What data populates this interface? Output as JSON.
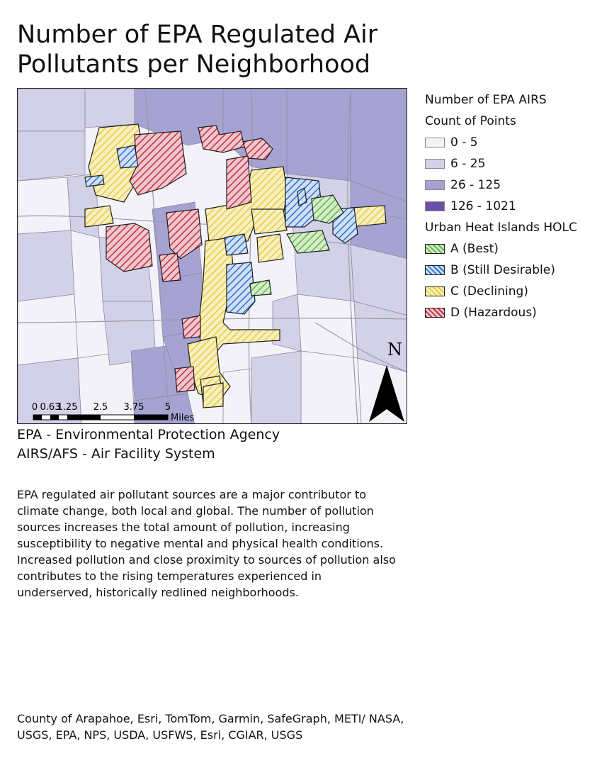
{
  "title": "Number of EPA Regulated Air Pollutants per Neighborhood",
  "legend": {
    "header1": "Number of EPA AIRS",
    "header2": "Count of Points",
    "classes": [
      {
        "label": "0 - 5",
        "color": "#f3f2f8"
      },
      {
        "label": "6 - 25",
        "color": "#d3d1e8"
      },
      {
        "label": "26 - 125",
        "color": "#a6a2d1"
      },
      {
        "label": "126 - 1021",
        "color": "#6a4fa8"
      }
    ],
    "holc_header": "Urban Heat Islands HOLC",
    "holc": [
      {
        "label": "A (Best)",
        "color": "#63b44a",
        "fill": "#d5ecc9"
      },
      {
        "label": "B (Still Desirable)",
        "color": "#2f6fd0",
        "fill": "#cfe0f6"
      },
      {
        "label": "C (Declining)",
        "color": "#e6cc3b",
        "fill": "#f7efbf"
      },
      {
        "label": "D (Hazardous)",
        "color": "#c12f43",
        "fill": "#f0c6cd"
      }
    ]
  },
  "map": {
    "north": "N",
    "scale_ticks": [
      "0",
      "0.63",
      "1.25",
      "2.5",
      "3.75",
      "5"
    ],
    "scale_unit": "Miles"
  },
  "sources": {
    "line1": "EPA - Environmental Protection Agency",
    "line2": "AIRS/AFS - Air Facility System"
  },
  "description": "EPA regulated air pollutant sources are a major contributor to climate change, both local and global. The number of pollution sources increases the total amount of pollution, increasing susceptibility to negative mental and physical health conditions. Increased pollution and close proximity to sources of pollution also contributes to the rising temperatures experienced in underserved, historically redlined neighborhoods.",
  "credits": "County of Arapahoe, Esri, TomTom, Garmin, SafeGraph, METI/ NASA, USGS, EPA, NPS, USDA, USFWS, Esri, CGIAR, USGS"
}
